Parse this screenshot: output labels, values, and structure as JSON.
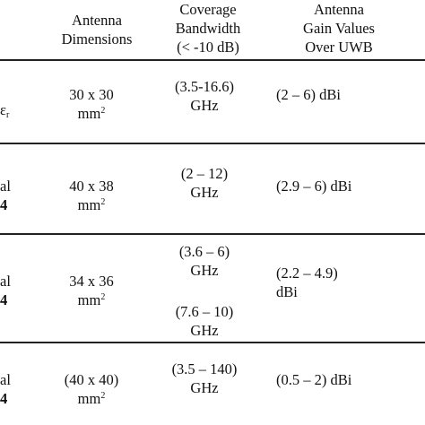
{
  "header": {
    "dimensions": [
      "Antenna",
      "Dimensions"
    ],
    "bandwidth": [
      "Coverage",
      "Bandwidth",
      "(< -10 dB)"
    ],
    "gain": [
      "Antenna",
      "Gain Values",
      "Over UWB"
    ]
  },
  "rows": [
    {
      "left": "ε",
      "left_sub": "r",
      "dim": [
        "30 x 30",
        "mm"
      ],
      "dim_sup": "2",
      "bw": [
        "(3.5-16.6)",
        "GHz"
      ],
      "gain": [
        "(2 – 6) dBi"
      ]
    },
    {
      "left": [
        "al",
        "4"
      ],
      "dim": [
        "40 x 38",
        "mm"
      ],
      "dim_sup": "2",
      "bw": [
        "(2 – 12)",
        "GHz"
      ],
      "gain": [
        "(2.9 – 6) dBi"
      ]
    },
    {
      "left": [
        "al",
        "4"
      ],
      "dim": [
        "34 x 36",
        "mm"
      ],
      "dim_sup": "2",
      "bw": [
        "(3.6 – 6)",
        "GHz",
        "(7.6 – 10)",
        "GHz"
      ],
      "gain": [
        "(2.2 – 4.9)",
        "dBi"
      ]
    },
    {
      "left": [
        "al",
        "4"
      ],
      "dim": [
        "(40 x 40)",
        "mm"
      ],
      "dim_sup": "2",
      "bw": [
        "(3.5 – 140)",
        "GHz"
      ],
      "gain": [
        "(0.5 – 2) dBi"
      ]
    }
  ]
}
